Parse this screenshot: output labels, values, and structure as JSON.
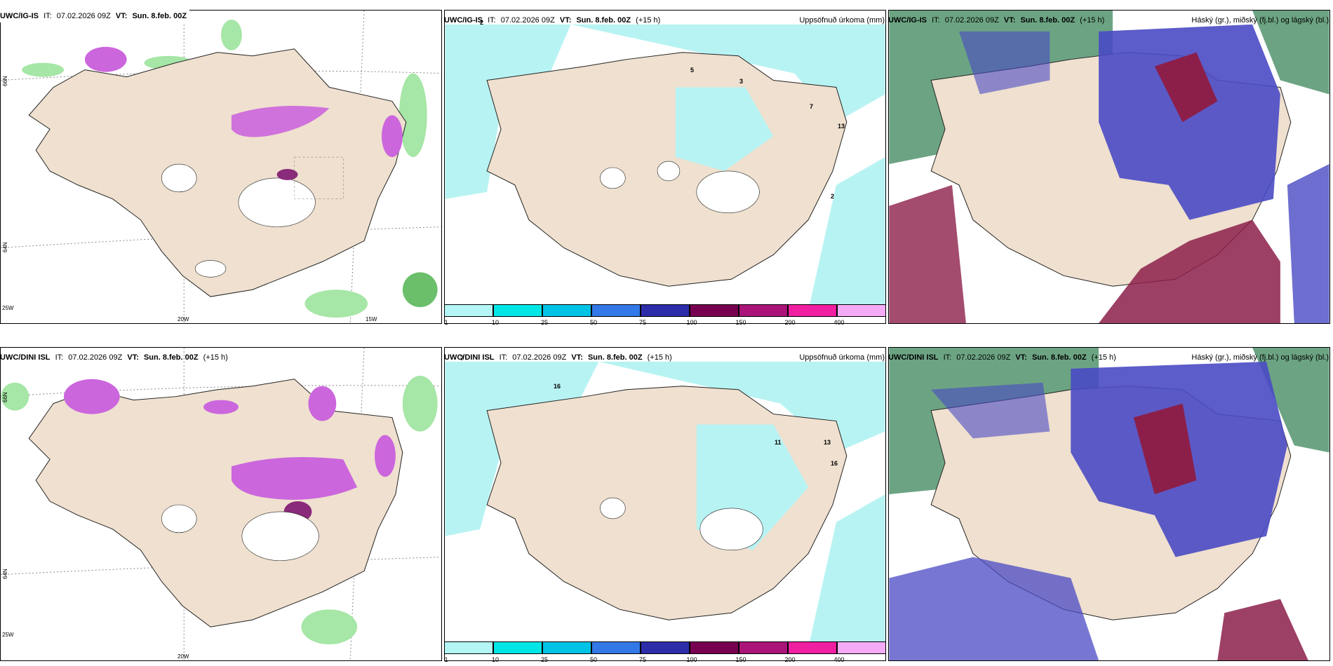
{
  "rows": [
    {
      "model": "UWC/IG-IS",
      "it_label": "IT:",
      "it_value": "07.02.2026 09Z",
      "vt_label": "VT:",
      "vt_value": "Sun. 8.feb. 00Z",
      "lead": "(+15 h)",
      "precip_title": "Uppsöfnuð úrkoma (mm)",
      "cloud_title": "Háský (gr.), miðský (fj.bl.) og lágský (bl.)"
    },
    {
      "model": "UWC/DINI ISL",
      "it_label": "IT:",
      "it_value": "07.02.2026 09Z",
      "vt_label": "VT:",
      "vt_value": "Sun. 8.feb. 00Z",
      "lead": "(+15 h)",
      "precip_title": "Uppsöfnuð úrkoma (mm)",
      "cloud_title": "Háský (gr.), miðský (fj.bl.) og lágský (bl.)"
    }
  ],
  "colorbar": {
    "ticks": [
      "1",
      "10",
      "25",
      "50",
      "75",
      "100",
      "150",
      "200",
      "400"
    ],
    "colors": [
      "#b4f5f5",
      "#00e6e6",
      "#00c3e6",
      "#3278e6",
      "#2d2daa",
      "#780050",
      "#aa1478",
      "#f01ea0",
      "#f5aaf5"
    ]
  },
  "grid_labels": {
    "lat_top": [
      "66N",
      "64N"
    ],
    "lon_bottom": [
      "25W",
      "20W",
      "15W"
    ]
  },
  "colors": {
    "land": "#efe0cf",
    "light_precip": "#b8f3f3",
    "green_precip": "#a6e6a6",
    "magenta_precip": "#cc66dd",
    "high_cloud": "#2e7d4f",
    "mid_cloud": "#4a4ac4",
    "low_cloud": "#8c1f4a"
  }
}
